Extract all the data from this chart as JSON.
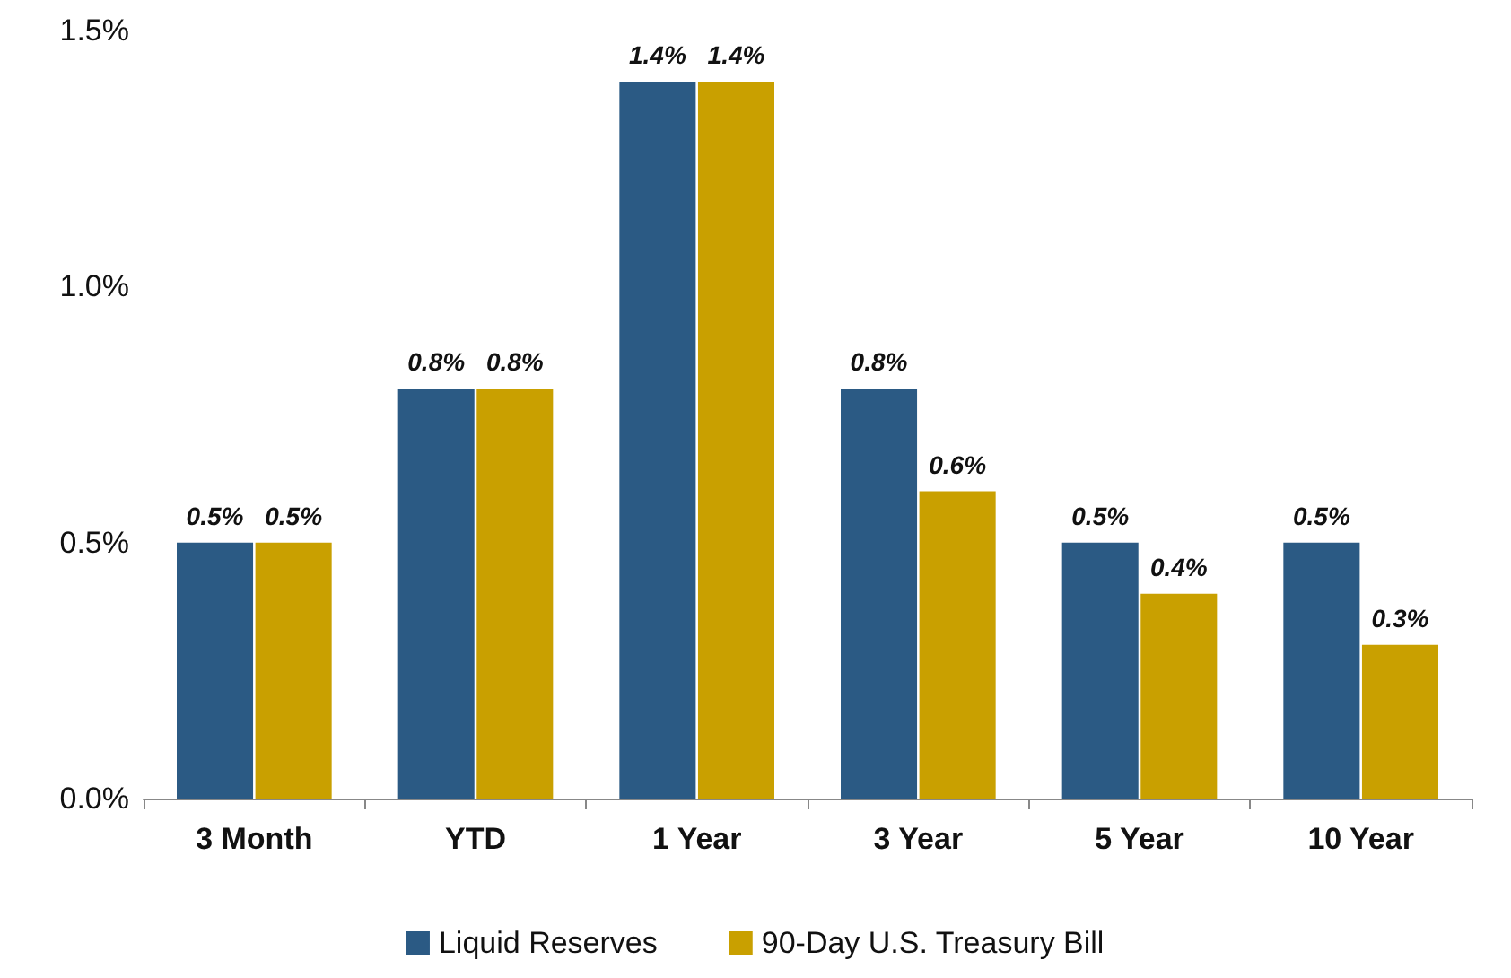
{
  "chart_data": {
    "type": "bar",
    "categories": [
      "3 Month",
      "YTD",
      "1 Year",
      "3 Year",
      "5 Year",
      "10 Year"
    ],
    "series": [
      {
        "name": "Liquid Reserves",
        "color": "#2b5a84",
        "values": [
          0.5,
          0.8,
          1.4,
          0.8,
          0.5,
          0.5
        ],
        "value_labels": [
          "0.5%",
          "0.8%",
          "1.4%",
          "0.8%",
          "0.5%",
          "0.5%"
        ]
      },
      {
        "name": "90-Day U.S. Treasury Bill",
        "color": "#c9a000",
        "values": [
          0.5,
          0.8,
          1.4,
          0.6,
          0.4,
          0.3
        ],
        "value_labels": [
          "0.5%",
          "0.8%",
          "1.4%",
          "0.6%",
          "0.4%",
          "0.3%"
        ]
      }
    ],
    "ylim": [
      0,
      1.5
    ],
    "yticks": [
      {
        "value": 0,
        "label": "0.0%"
      },
      {
        "value": 0.5,
        "label": "0.5%"
      },
      {
        "value": 1,
        "label": "1.0%"
      },
      {
        "value": 1.5,
        "label": "1.5%"
      }
    ],
    "grid": false,
    "legend": "bottom"
  }
}
